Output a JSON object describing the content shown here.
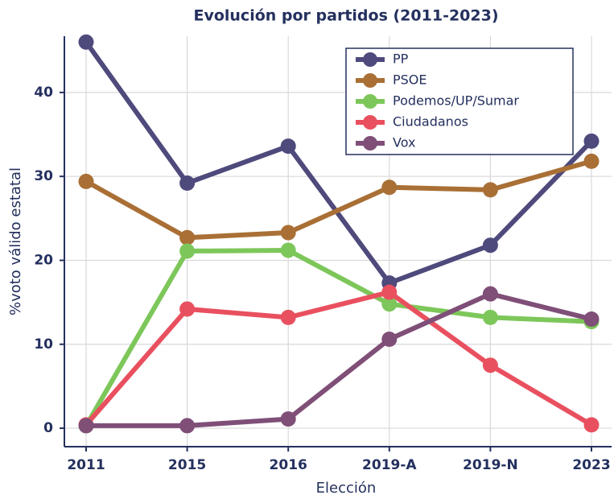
{
  "chart_data": {
    "type": "line",
    "title": "Evolución por partidos (2011-2023)",
    "x_label": "Elección",
    "y_label": "%voto válido estatal",
    "categories": [
      "2011",
      "2015",
      "2016",
      "2019-A",
      "2019-N",
      "2023"
    ],
    "series": [
      {
        "name": "PP",
        "color": "#4e4a7c",
        "values": [
          46.0,
          29.2,
          33.6,
          17.3,
          21.8,
          34.2
        ]
      },
      {
        "name": "PSOE",
        "color": "#a96f35",
        "values": [
          29.4,
          22.7,
          23.3,
          28.7,
          28.4,
          31.8
        ]
      },
      {
        "name": "Podemos/UP/Sumar",
        "color": "#7dc75a",
        "values": [
          0.3,
          21.1,
          21.2,
          14.8,
          13.2,
          12.7
        ]
      },
      {
        "name": "Ciudadanos",
        "color": "#e9505f",
        "values": [
          0.4,
          14.2,
          13.2,
          16.2,
          7.5,
          0.4
        ]
      },
      {
        "name": "Vox",
        "color": "#7f4f78",
        "values": [
          0.3,
          0.3,
          1.1,
          10.6,
          16.0,
          13.0
        ]
      }
    ],
    "ylim": [
      -2.2,
      46.7
    ],
    "yticks": [
      0,
      10,
      20,
      30,
      40
    ],
    "grid": true,
    "legend": "upper right"
  }
}
